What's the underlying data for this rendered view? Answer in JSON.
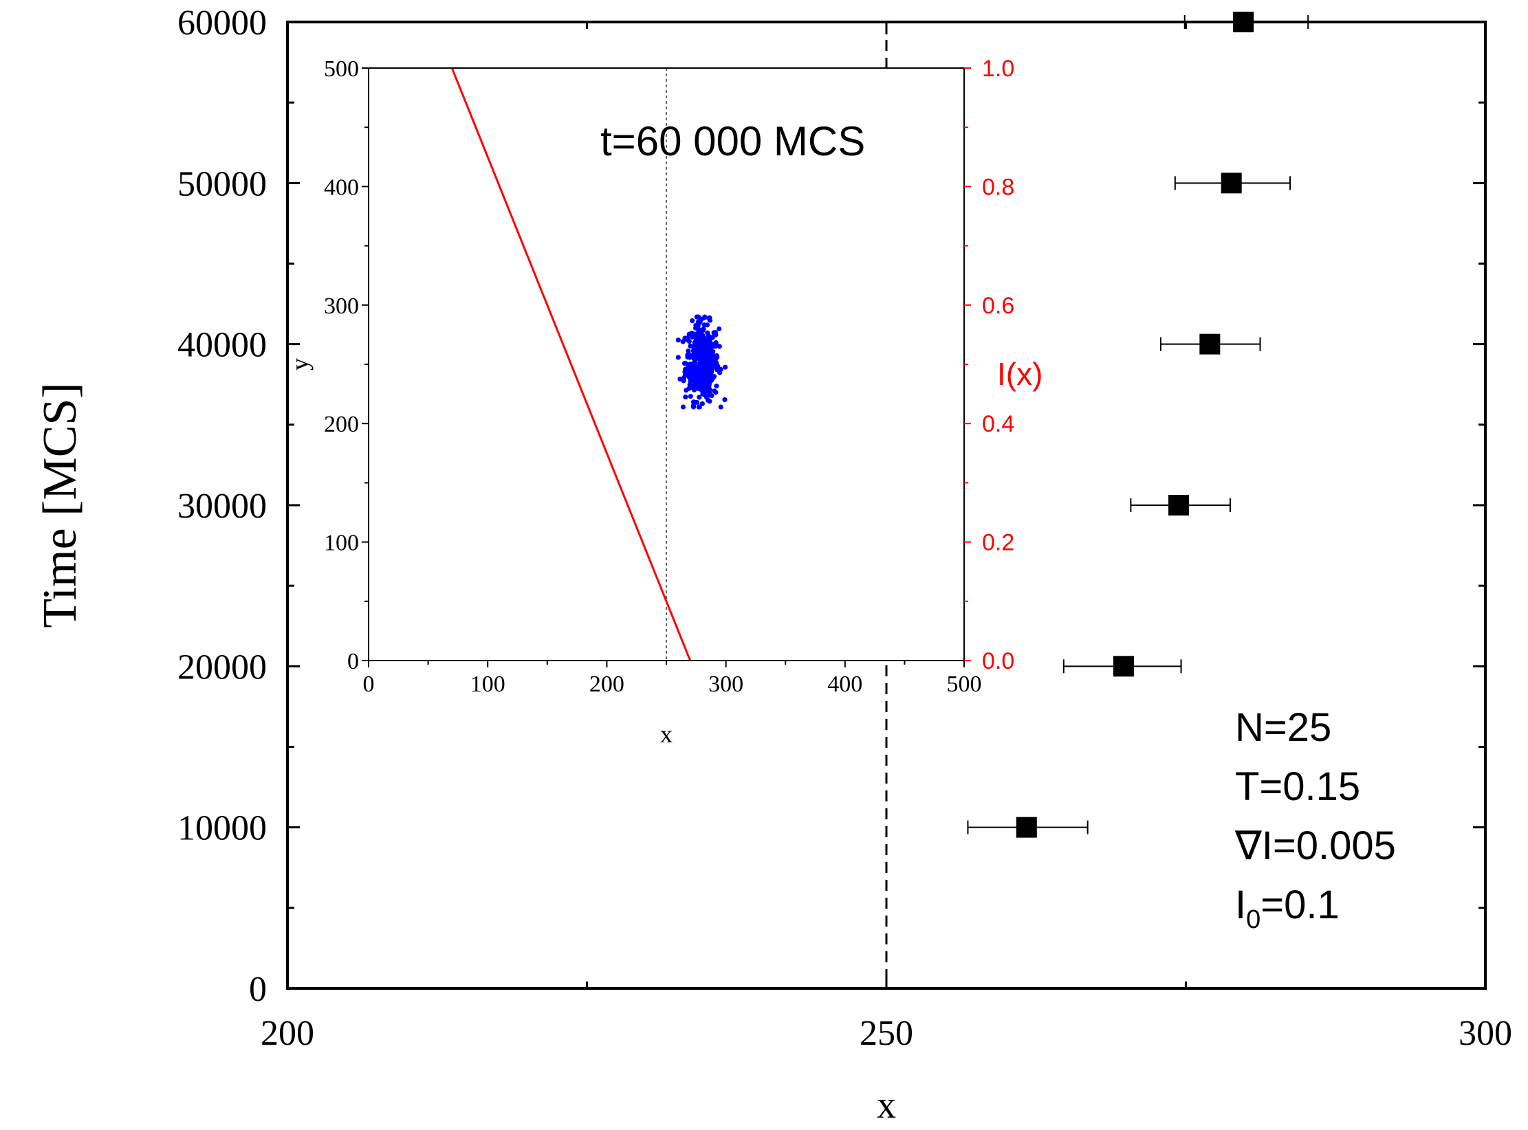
{
  "chart_data": {
    "main": {
      "type": "scatter",
      "xlabel": "x",
      "ylabel": "Time [MCS]",
      "xlim": [
        200,
        300
      ],
      "ylim": [
        0,
        60000
      ],
      "x_ticks": [
        "200",
        "250",
        "300"
      ],
      "y_ticks": [
        "0",
        "10000",
        "20000",
        "30000",
        "40000",
        "50000",
        "60000"
      ],
      "reference_line_x": 250,
      "points": [
        {
          "x": 261.7,
          "time": 10000,
          "xerr_low": 256.8,
          "xerr_high": 266.8
        },
        {
          "x": 269.8,
          "time": 20000,
          "xerr_low": 264.8,
          "xerr_high": 274.6
        },
        {
          "x": 274.4,
          "time": 30000,
          "xerr_low": 270.4,
          "xerr_high": 278.7
        },
        {
          "x": 277.0,
          "time": 40000,
          "xerr_low": 272.9,
          "xerr_high": 281.2
        },
        {
          "x": 278.8,
          "time": 50000,
          "xerr_low": 274.1,
          "xerr_high": 283.7
        },
        {
          "x": 279.8,
          "time": 60000,
          "xerr_low": 274.9,
          "xerr_high": 285.2
        }
      ],
      "params": {
        "n": "N=25",
        "t": "T=0.15",
        "grad": "∇I=0.005",
        "i0_base": "I",
        "i0_sub": "0",
        "i0_rest": "=0.1"
      }
    },
    "inset": {
      "type": "scatter",
      "title": "t=60 000 MCS",
      "xlabel": "x",
      "ylabel": "y",
      "xlim": [
        0,
        500
      ],
      "ylim": [
        0,
        500
      ],
      "x_ticks": [
        "0",
        "100",
        "200",
        "300",
        "400",
        "500"
      ],
      "y_ticks": [
        "0",
        "100",
        "200",
        "300",
        "400",
        "500"
      ],
      "right_axis_label": "I(x)",
      "right_ylim": [
        0,
        1.0
      ],
      "right_ticks": [
        "0.0",
        "0.2",
        "0.4",
        "0.6",
        "0.8",
        "1.0"
      ],
      "reference_line_x": 250,
      "intensity_line": {
        "x0": 70,
        "y0": 500,
        "x1": 270,
        "y1": 0
      },
      "cluster": {
        "center_x": 280,
        "center_y": 252,
        "spread_x": 7,
        "spread_y": 16,
        "count": 450
      },
      "colors": {
        "intensity": "#ff0000",
        "particles": "#0000ff"
      }
    }
  }
}
